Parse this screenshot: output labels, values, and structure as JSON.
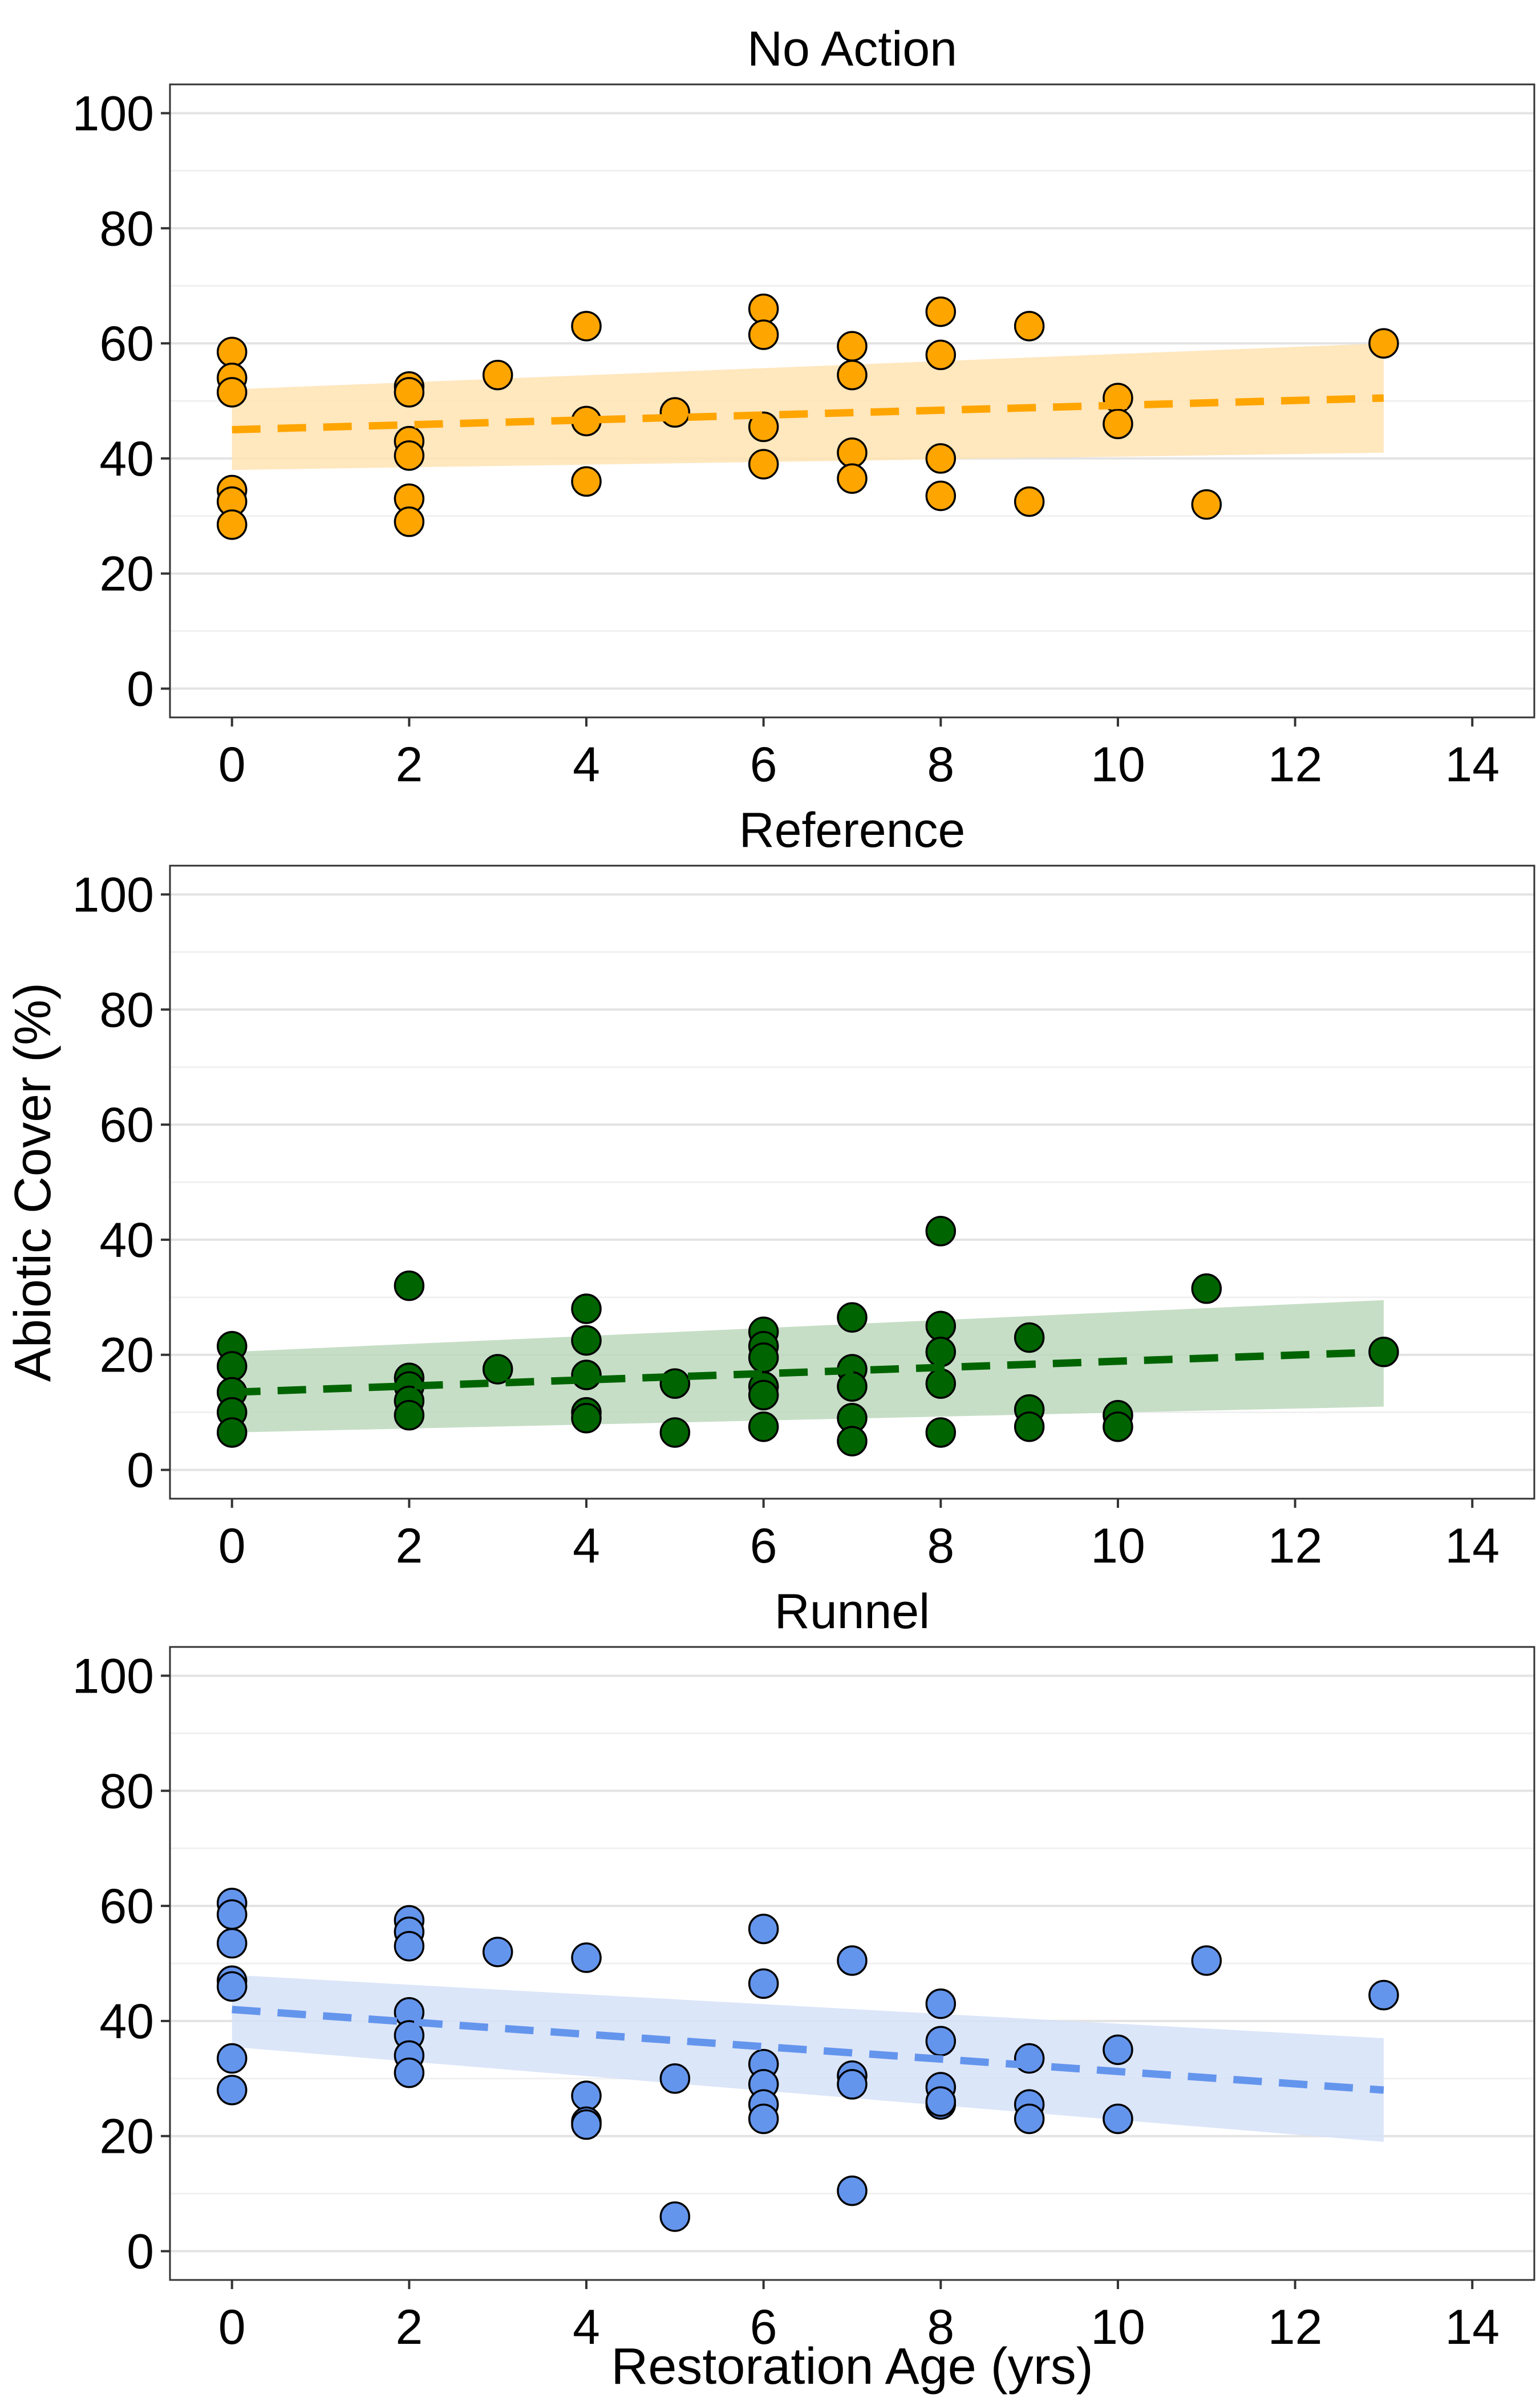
{
  "chart_data": [
    {
      "type": "scatter",
      "title": "No Action",
      "xlabel": "",
      "ylabel": "",
      "xlim": [
        -0.7,
        14.7
      ],
      "ylim": [
        -5,
        105
      ],
      "xticks": [
        0,
        2,
        4,
        6,
        8,
        10,
        12,
        14
      ],
      "yticks": [
        0,
        20,
        40,
        60,
        80,
        100
      ],
      "grid": true,
      "point_color": "#FFA500",
      "band_color": "#FFE3B3",
      "fit": {
        "x": [
          0,
          13
        ],
        "y": [
          45,
          50.5
        ],
        "ci_lower": [
          38,
          41
        ],
        "ci_upper": [
          52,
          60
        ],
        "style": "dashed"
      },
      "points": [
        [
          0,
          58.5
        ],
        [
          0,
          54
        ],
        [
          0,
          51.5
        ],
        [
          0,
          34.5
        ],
        [
          0,
          32.5
        ],
        [
          0,
          28.5
        ],
        [
          2,
          52.5
        ],
        [
          2,
          51.5
        ],
        [
          2,
          43
        ],
        [
          2,
          40.5
        ],
        [
          2,
          33
        ],
        [
          2,
          29
        ],
        [
          3,
          54.5
        ],
        [
          4,
          63
        ],
        [
          4,
          46.5
        ],
        [
          4,
          36
        ],
        [
          5,
          48
        ],
        [
          6,
          66
        ],
        [
          6,
          61.5
        ],
        [
          6,
          45.5
        ],
        [
          6,
          39
        ],
        [
          7,
          59.5
        ],
        [
          7,
          54.5
        ],
        [
          7,
          41
        ],
        [
          7,
          36.5
        ],
        [
          8,
          65.5
        ],
        [
          8,
          58
        ],
        [
          8,
          40
        ],
        [
          8,
          33.5
        ],
        [
          9,
          63
        ],
        [
          9,
          32.5
        ],
        [
          10,
          50.5
        ],
        [
          10,
          46
        ],
        [
          11,
          32
        ],
        [
          13,
          60
        ]
      ]
    },
    {
      "type": "scatter",
      "title": "Reference",
      "xlabel": "",
      "ylabel": "Abiotic Cover (%)",
      "xlim": [
        -0.7,
        14.7
      ],
      "ylim": [
        -5,
        105
      ],
      "xticks": [
        0,
        2,
        4,
        6,
        8,
        10,
        12,
        14
      ],
      "yticks": [
        0,
        20,
        40,
        60,
        80,
        100
      ],
      "grid": true,
      "point_color": "#006400",
      "band_color": "#BCD8BC",
      "fit": {
        "x": [
          0,
          13
        ],
        "y": [
          13.5,
          20.5
        ],
        "ci_lower": [
          6.5,
          11
        ],
        "ci_upper": [
          20.5,
          29.5
        ],
        "style": "dashed"
      },
      "points": [
        [
          0,
          21.5
        ],
        [
          0,
          18
        ],
        [
          0,
          13.5
        ],
        [
          0,
          10
        ],
        [
          0,
          6.5
        ],
        [
          2,
          32
        ],
        [
          2,
          16
        ],
        [
          2,
          14.5
        ],
        [
          2,
          12
        ],
        [
          2,
          9.5
        ],
        [
          3,
          17.5
        ],
        [
          4,
          28
        ],
        [
          4,
          22.5
        ],
        [
          4,
          16.5
        ],
        [
          4,
          10
        ],
        [
          4,
          9
        ],
        [
          5,
          15
        ],
        [
          5,
          6.5
        ],
        [
          6,
          24
        ],
        [
          6,
          21.5
        ],
        [
          6,
          19.5
        ],
        [
          6,
          14.5
        ],
        [
          6,
          13
        ],
        [
          6,
          7.5
        ],
        [
          7,
          26.5
        ],
        [
          7,
          17.5
        ],
        [
          7,
          14.5
        ],
        [
          7,
          9
        ],
        [
          7,
          5
        ],
        [
          8,
          41.5
        ],
        [
          8,
          25
        ],
        [
          8,
          20.5
        ],
        [
          8,
          15
        ],
        [
          8,
          6.5
        ],
        [
          9,
          23
        ],
        [
          9,
          10.5
        ],
        [
          9,
          7.5
        ],
        [
          10,
          9.5
        ],
        [
          10,
          7.5
        ],
        [
          11,
          31.5
        ],
        [
          13,
          20.5
        ]
      ]
    },
    {
      "type": "scatter",
      "title": "Runnel",
      "xlabel": "Restoration Age (yrs)",
      "ylabel": "",
      "xlim": [
        -0.7,
        14.7
      ],
      "ylim": [
        -5,
        105
      ],
      "xticks": [
        0,
        2,
        4,
        6,
        8,
        10,
        12,
        14
      ],
      "yticks": [
        0,
        20,
        40,
        60,
        80,
        100
      ],
      "grid": true,
      "point_color": "#6495ED",
      "band_color": "#D6E2F8",
      "fit": {
        "x": [
          0,
          13
        ],
        "y": [
          42,
          28
        ],
        "ci_lower": [
          35.5,
          19
        ],
        "ci_upper": [
          48,
          37
        ],
        "style": "dashed"
      },
      "points": [
        [
          0,
          60.5
        ],
        [
          0,
          58.5
        ],
        [
          0,
          53.5
        ],
        [
          0,
          47
        ],
        [
          0,
          46
        ],
        [
          0,
          33.5
        ],
        [
          0,
          28
        ],
        [
          2,
          57.5
        ],
        [
          2,
          55.5
        ],
        [
          2,
          53
        ],
        [
          2,
          41.5
        ],
        [
          2,
          37.5
        ],
        [
          2,
          34
        ],
        [
          2,
          31
        ],
        [
          3,
          52
        ],
        [
          4,
          51
        ],
        [
          4,
          27
        ],
        [
          4,
          22.5
        ],
        [
          4,
          22
        ],
        [
          5,
          30
        ],
        [
          5,
          6
        ],
        [
          6,
          56
        ],
        [
          6,
          46.5
        ],
        [
          6,
          32.5
        ],
        [
          6,
          29
        ],
        [
          6,
          25.5
        ],
        [
          6,
          23
        ],
        [
          7,
          50.5
        ],
        [
          7,
          30.5
        ],
        [
          7,
          29
        ],
        [
          7,
          10.5
        ],
        [
          8,
          43
        ],
        [
          8,
          36.5
        ],
        [
          8,
          28.5
        ],
        [
          8,
          25.5
        ],
        [
          8,
          26
        ],
        [
          9,
          33.5
        ],
        [
          9,
          25.5
        ],
        [
          9,
          23
        ],
        [
          10,
          35
        ],
        [
          10,
          23
        ],
        [
          11,
          50.5
        ],
        [
          13,
          44.5
        ]
      ]
    }
  ]
}
